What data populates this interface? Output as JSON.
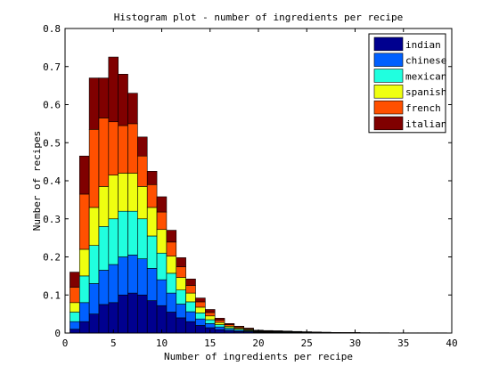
{
  "chart_data": {
    "type": "bar",
    "stacked": true,
    "title": "Histogram plot - number of  ingredients per recipe",
    "xlabel": "Number of ingredients per recipe",
    "ylabel": "Number of recipes",
    "xlim": [
      0,
      40
    ],
    "ylim": [
      0,
      0.8
    ],
    "x_ticks": [
      0,
      5,
      10,
      15,
      20,
      25,
      30,
      35,
      40
    ],
    "y_ticks": [
      0,
      0.1,
      0.2,
      0.3,
      0.4,
      0.5,
      0.6,
      0.7,
      0.8
    ],
    "x_tick_labels": [
      "0",
      "5",
      "10",
      "15",
      "20",
      "25",
      "30",
      "35",
      "40"
    ],
    "y_tick_labels": [
      "0",
      "0.1",
      "0.2",
      "0.3",
      "0.4",
      "0.5",
      "0.6",
      "0.7",
      "0.8"
    ],
    "legend_position": "top-right",
    "grid": false,
    "x": [
      1,
      2,
      3,
      4,
      5,
      6,
      7,
      8,
      9,
      10,
      11,
      12,
      13,
      14,
      15,
      16,
      17,
      18,
      19,
      20,
      21,
      22,
      23,
      24,
      25,
      26,
      27,
      28,
      29,
      30,
      31,
      32,
      33,
      34,
      35,
      36,
      37,
      38,
      39
    ],
    "series": [
      {
        "name": "indian",
        "color": "#00008f",
        "values": [
          0.01,
          0.03,
          0.05,
          0.075,
          0.08,
          0.1,
          0.105,
          0.1,
          0.085,
          0.072,
          0.055,
          0.04,
          0.03,
          0.02,
          0.014,
          0.009,
          0.006,
          0.004,
          0.003,
          0.002,
          0.0015,
          0.001,
          0.001,
          0.001,
          0.0008,
          0.0006,
          0.0005,
          0.0004,
          0.0003,
          0.0003,
          0.0002,
          0.0002,
          0.0002,
          0.0001,
          0.0001,
          0.0001,
          0.0001,
          0.0001,
          0.0001
        ]
      },
      {
        "name": "chinese",
        "color": "#0060ff",
        "values": [
          0.02,
          0.05,
          0.08,
          0.09,
          0.1,
          0.1,
          0.1,
          0.095,
          0.085,
          0.068,
          0.05,
          0.036,
          0.026,
          0.017,
          0.011,
          0.007,
          0.004,
          0.003,
          0.002,
          0.0015,
          0.001,
          0.001,
          0.001,
          0.0008,
          0.0006,
          0.0005,
          0.0004,
          0.0003,
          0.0002,
          0.0002,
          0.0002,
          0.0001,
          0.0001,
          0.0001,
          0.0001,
          0.0001,
          0.0001,
          0.0001,
          0.0001
        ]
      },
      {
        "name": "mexican",
        "color": "#20ffdf",
        "values": [
          0.025,
          0.07,
          0.1,
          0.115,
          0.12,
          0.12,
          0.115,
          0.105,
          0.085,
          0.07,
          0.052,
          0.037,
          0.026,
          0.016,
          0.01,
          0.006,
          0.004,
          0.003,
          0.002,
          0.001,
          0.001,
          0.001,
          0.0008,
          0.0006,
          0.0005,
          0.0004,
          0.0003,
          0.0002,
          0.0002,
          0.0002,
          0.0001,
          0.0001,
          0.0001,
          0.0001,
          0.0001,
          0.0001,
          0.0001,
          0.0001,
          0.0001
        ]
      },
      {
        "name": "spanish",
        "color": "#efff10",
        "values": [
          0.025,
          0.07,
          0.1,
          0.105,
          0.115,
          0.1,
          0.1,
          0.085,
          0.075,
          0.062,
          0.045,
          0.033,
          0.023,
          0.015,
          0.01,
          0.006,
          0.004,
          0.003,
          0.002,
          0.001,
          0.001,
          0.001,
          0.0008,
          0.0006,
          0.0005,
          0.0004,
          0.0003,
          0.0002,
          0.0002,
          0.0002,
          0.0001,
          0.0001,
          0.0001,
          0.0001,
          0.0001,
          0.0001,
          0.0001,
          0.0001,
          0.0001
        ]
      },
      {
        "name": "french",
        "color": "#ff5000",
        "values": [
          0.04,
          0.145,
          0.205,
          0.18,
          0.14,
          0.125,
          0.13,
          0.08,
          0.06,
          0.046,
          0.037,
          0.028,
          0.02,
          0.014,
          0.009,
          0.006,
          0.004,
          0.003,
          0.002,
          0.001,
          0.001,
          0.001,
          0.0008,
          0.0006,
          0.0005,
          0.0004,
          0.0003,
          0.0002,
          0.0002,
          0.0002,
          0.0001,
          0.0001,
          0.0001,
          0.0001,
          0.0001,
          0.0001,
          0.0001,
          0.0001,
          0.0001
        ]
      },
      {
        "name": "italian",
        "color": "#800000",
        "values": [
          0.04,
          0.1,
          0.135,
          0.105,
          0.17,
          0.135,
          0.08,
          0.05,
          0.035,
          0.04,
          0.031,
          0.024,
          0.017,
          0.01,
          0.008,
          0.005,
          0.003,
          0.002,
          0.002,
          0.001,
          0.001,
          0.001,
          0.0008,
          0.0006,
          0.0005,
          0.0004,
          0.0003,
          0.0002,
          0.0002,
          0.0002,
          0.0001,
          0.0001,
          0.0001,
          0.0001,
          0.0001,
          0.0001,
          0.0001,
          0.0001,
          0.0001
        ]
      }
    ]
  }
}
